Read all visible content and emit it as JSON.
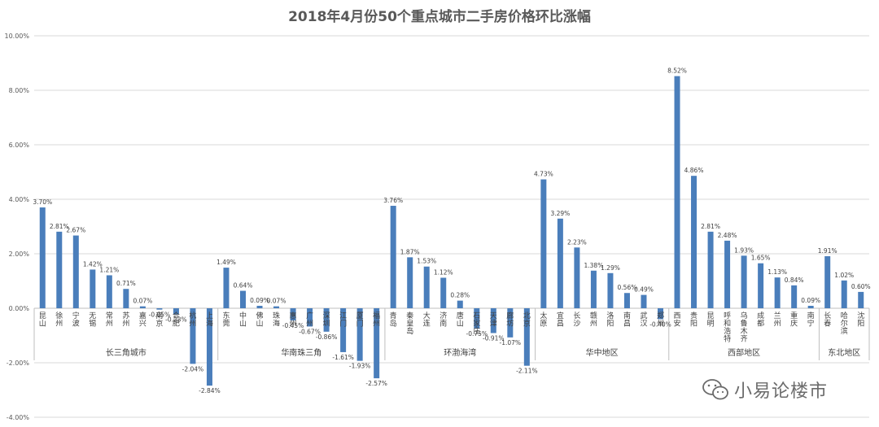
{
  "chart_data": {
    "type": "bar",
    "title": "2018年4月份50个重点城市二手房价格环比涨幅",
    "ylim": [
      -4,
      10
    ],
    "y_ticks": [
      "-4.00%",
      "-2.00%",
      "0.00%",
      "2.00%",
      "4.00%",
      "6.00%",
      "8.00%",
      "10.00%"
    ],
    "grid": true,
    "bar_color": "#4a7ebb",
    "groups": [
      {
        "name": "长三角城市",
        "start": 0,
        "end": 11
      },
      {
        "name": "华南珠三角",
        "start": 11,
        "end": 21
      },
      {
        "name": "环渤海湾",
        "start": 21,
        "end": 30
      },
      {
        "name": "华中地区",
        "start": 30,
        "end": 38
      },
      {
        "name": "西部地区",
        "start": 38,
        "end": 47
      },
      {
        "name": "东北地区",
        "start": 47,
        "end": 50
      }
    ],
    "categories": [
      "昆山",
      "徐州",
      "宁波",
      "无锡",
      "常州",
      "苏州",
      "嘉兴",
      "南京",
      "合肥",
      "杭州",
      "上海",
      "东莞",
      "中山",
      "佛山",
      "珠海",
      "惠州",
      "广州",
      "深圳",
      "江门",
      "厦门",
      "福州",
      "青岛",
      "秦皇岛",
      "大连",
      "济南",
      "唐山",
      "石家庄",
      "天津",
      "廊坊",
      "北京",
      "太原",
      "宜昌",
      "长沙",
      "赣州",
      "洛阳",
      "南昌",
      "武汉",
      "郑州",
      "西安",
      "贵阳",
      "昆明",
      "呼和浩特",
      "乌鲁木齐",
      "成都",
      "兰州",
      "重庆",
      "南宁",
      "长春",
      "哈尔滨",
      "沈阳"
    ],
    "values": [
      3.7,
      2.81,
      2.67,
      1.42,
      1.21,
      0.71,
      0.07,
      -0.05,
      -0.23,
      -2.04,
      -2.84,
      1.49,
      0.64,
      0.09,
      0.07,
      -0.45,
      -0.67,
      -0.86,
      -1.61,
      -1.93,
      -2.57,
      3.76,
      1.87,
      1.53,
      1.12,
      0.28,
      -0.75,
      -0.91,
      -1.07,
      -2.11,
      4.73,
      3.29,
      2.23,
      1.38,
      1.29,
      0.56,
      0.49,
      -0.4,
      8.52,
      4.86,
      2.81,
      2.48,
      1.93,
      1.65,
      1.13,
      0.84,
      0.09,
      1.91,
      1.02,
      0.6
    ],
    "data_labels": [
      "3.70%",
      "2.81%",
      "2.67%",
      "1.42%",
      "1.21%",
      "0.71%",
      "0.07%",
      "-0.05%",
      "-0.23%",
      "-2.04%",
      "-2.84%",
      "1.49%",
      "0.64%",
      "0.09%",
      "0.07%",
      "-0.45%",
      "-0.67%",
      "-0.86%",
      "-1.61%",
      "-1.93%",
      "-2.57%",
      "3.76%",
      "1.87%",
      "1.53%",
      "1.12%",
      "0.28%",
      "-0.75%",
      "-0.91%",
      "-1.07%",
      "-2.11%",
      "4.73%",
      "3.29%",
      "2.23%",
      "1.38%",
      "1.29%",
      "0.56%",
      "0.49%",
      "-0.40%",
      "8.52%",
      "4.86%",
      "2.81%",
      "2.48%",
      "1.93%",
      "1.65%",
      "1.13%",
      "0.84%",
      "0.09%",
      "1.91%",
      "1.02%",
      "0.60%"
    ]
  },
  "watermark": {
    "text": "小易论楼市",
    "icon": "wechat-icon",
    "color": "#6b6b6b"
  }
}
